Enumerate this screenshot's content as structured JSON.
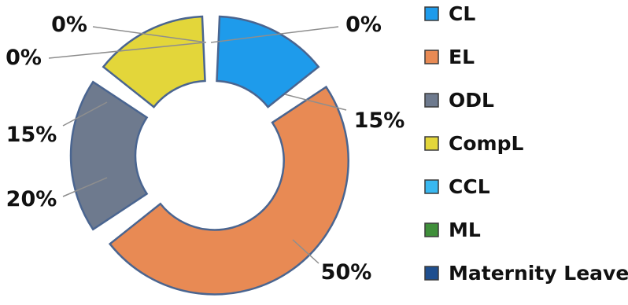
{
  "chart_data": {
    "type": "pie",
    "donut": true,
    "title": "",
    "legend_position": "right",
    "categories": [
      "CL",
      "EL",
      "ODL",
      "CompL",
      "CCL",
      "ML",
      "Maternity Leave"
    ],
    "values": [
      15,
      50,
      20,
      15,
      0,
      0,
      0
    ],
    "data_labels": [
      "15%",
      "50%",
      "20%",
      "15%",
      "0%",
      "0%",
      "0%"
    ],
    "colors": [
      "#1E9BEB",
      "#E88A54",
      "#6E7A8E",
      "#E3D63A",
      "#39B8F0",
      "#3F8F3A",
      "#1F4F8F"
    ],
    "outline_color": "#4A6590"
  }
}
